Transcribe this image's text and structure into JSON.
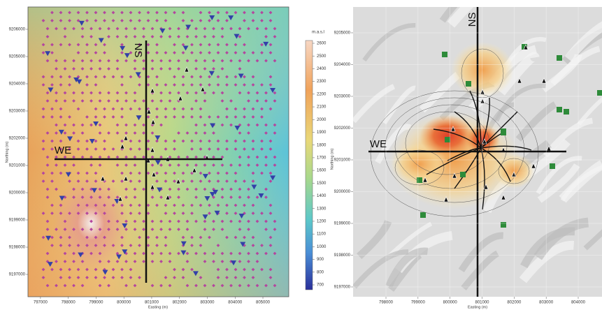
{
  "left_map": {
    "profiles": {
      "ns": "NS",
      "we": "WE"
    },
    "x_axis": {
      "label": "Easting (m)",
      "lim": [
        796550,
        805930
      ],
      "ticks": [
        797000,
        798000,
        799000,
        800000,
        801000,
        802000,
        803000,
        804000,
        805000
      ]
    },
    "y_axis": {
      "label": "Northing (m)",
      "lim": [
        9196180,
        9206820
      ],
      "ticks": [
        9206000,
        9205000,
        9204000,
        9203000,
        9202000,
        9201000,
        9200000,
        9199000,
        9198000,
        9197000
      ]
    },
    "colorbar": {
      "label": "m.a.s.l",
      "ticks": [
        2600,
        2500,
        2400,
        2300,
        2200,
        2100,
        2000,
        1900,
        1800,
        1700,
        1600,
        1500,
        1400,
        1300,
        1200,
        1100,
        1000,
        900,
        800,
        700
      ]
    }
  },
  "right_map": {
    "profiles": {
      "ns": "NS",
      "we": "WE"
    },
    "x_axis": {
      "label": "Easting (m)",
      "lim": [
        796974,
        804742
      ],
      "ticks": [
        798000,
        799000,
        800000,
        801000,
        802000,
        803000,
        804000
      ]
    },
    "y_axis": {
      "label": "Northing (m)",
      "lim": [
        9196692,
        9205813
      ],
      "ticks": [
        9205000,
        9204000,
        9203000,
        9202000,
        9201000,
        9200000,
        9199000,
        9198000,
        9197000
      ]
    }
  }
}
